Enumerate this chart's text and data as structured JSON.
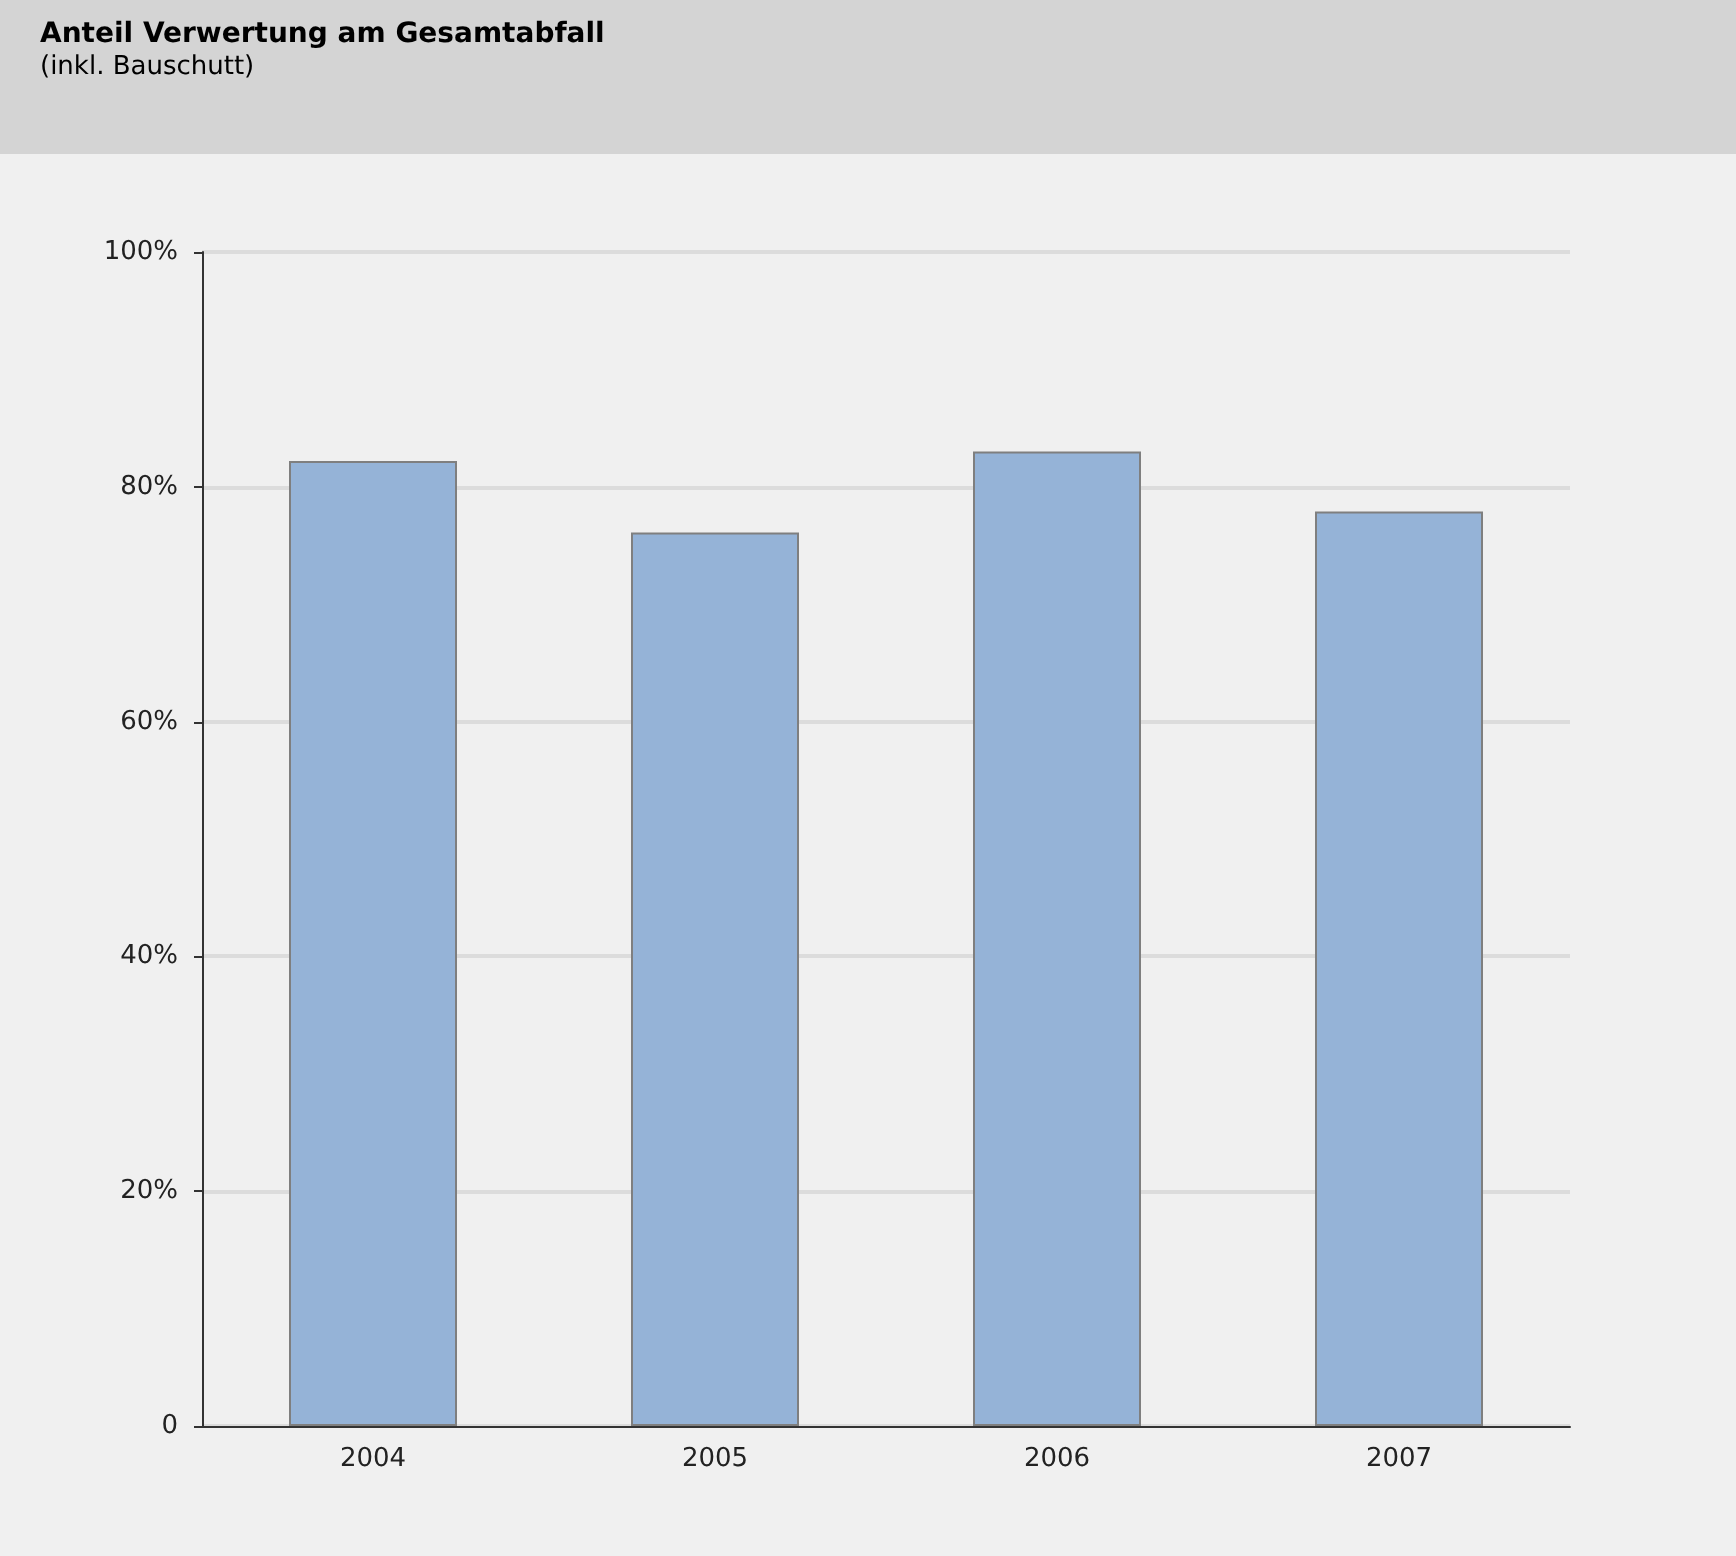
{
  "chart_data": {
    "type": "bar",
    "title": "Anteil Verwertung am Gesamtabfall",
    "subtitle": "(inkl. Bauschutt)",
    "categories": [
      "2004",
      "2005",
      "2006",
      "2007"
    ],
    "values": [
      82.2,
      76.1,
      83.0,
      77.9
    ],
    "color": "#95b3d7",
    "ylim": [
      0,
      100
    ],
    "yticks": [
      0,
      {
        "value": 20,
        "label": "20%"
      },
      {
        "value": 40,
        "label": "40%"
      },
      {
        "value": 60,
        "label": "60%"
      },
      {
        "value": 80,
        "label": "80%"
      },
      {
        "value": 100,
        "label": "100%"
      }
    ],
    "grid": "y"
  }
}
